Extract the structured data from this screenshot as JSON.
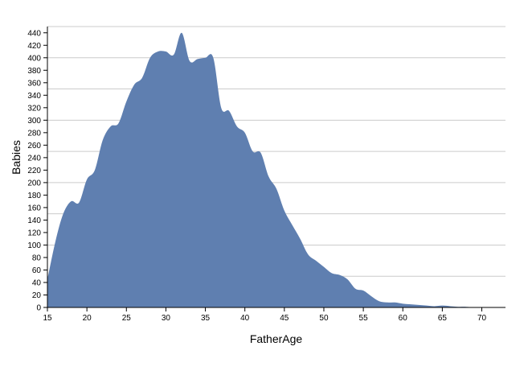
{
  "chart_data": {
    "type": "area",
    "xlabel": "FatherAge",
    "ylabel": "Babies",
    "xlim": [
      15,
      73
    ],
    "ylim": [
      0,
      450
    ],
    "x_ticks": [
      15,
      20,
      25,
      30,
      35,
      40,
      45,
      50,
      55,
      60,
      65,
      70
    ],
    "y_ticks": [
      0,
      20,
      40,
      60,
      80,
      100,
      120,
      140,
      160,
      180,
      200,
      220,
      240,
      260,
      280,
      300,
      320,
      340,
      360,
      380,
      400,
      420,
      440
    ],
    "gridlines_every": 50,
    "grid": true,
    "fill_color": "#5f7fb0",
    "x": [
      15,
      16,
      17,
      18,
      19,
      20,
      21,
      22,
      23,
      24,
      25,
      26,
      27,
      28,
      29,
      30,
      31,
      32,
      33,
      34,
      35,
      36,
      37,
      38,
      39,
      40,
      41,
      42,
      43,
      44,
      45,
      46,
      47,
      48,
      49,
      50,
      51,
      52,
      53,
      54,
      55,
      56,
      57,
      58,
      59,
      60,
      61,
      62,
      63,
      64,
      65,
      66,
      67,
      68,
      69,
      70,
      71,
      72,
      73
    ],
    "y": [
      45,
      105,
      150,
      170,
      168,
      205,
      220,
      268,
      290,
      295,
      330,
      357,
      368,
      400,
      410,
      410,
      405,
      440,
      395,
      398,
      400,
      400,
      320,
      315,
      290,
      280,
      250,
      248,
      210,
      190,
      155,
      132,
      110,
      85,
      75,
      65,
      55,
      52,
      45,
      30,
      27,
      18,
      10,
      8,
      8,
      6,
      5,
      4,
      3,
      2,
      3,
      2,
      1,
      1,
      0,
      0,
      0,
      0,
      0
    ]
  }
}
